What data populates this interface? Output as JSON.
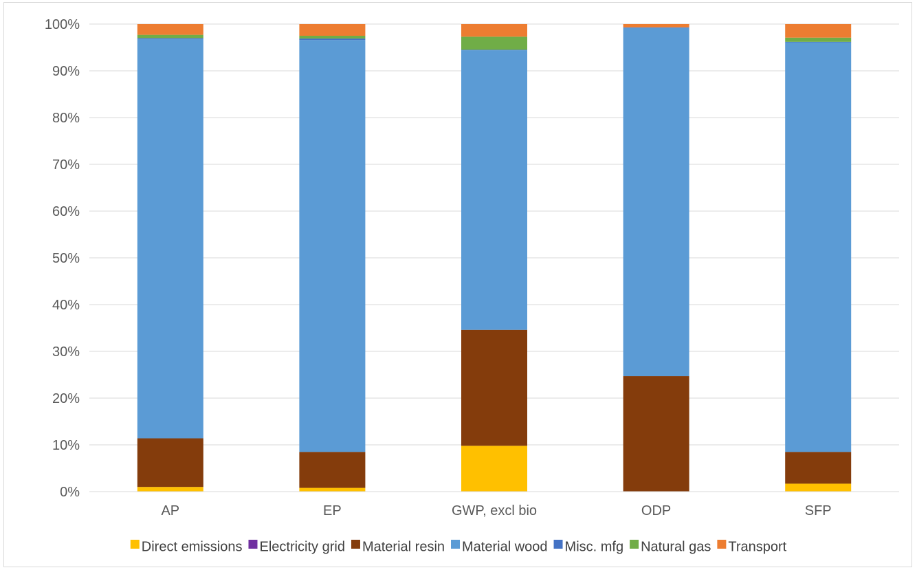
{
  "chart_data": {
    "type": "bar",
    "stacked": true,
    "percent_stacked": true,
    "categories": [
      "AP",
      "EP",
      "GWP, excl bio",
      "ODP",
      "SFP"
    ],
    "series": [
      {
        "name": "Direct emissions",
        "color": "#FFC000",
        "values": [
          1.0,
          0.8,
          9.8,
          0.0,
          1.7
        ]
      },
      {
        "name": "Electricity grid",
        "color": "#7030A0",
        "values": [
          0.0,
          0.0,
          0.0,
          0.0,
          0.0
        ]
      },
      {
        "name": "Material resin",
        "color": "#843C0C",
        "values": [
          10.4,
          7.7,
          24.8,
          24.7,
          6.8
        ]
      },
      {
        "name": "Material wood",
        "color": "#5B9BD5",
        "values": [
          85.4,
          88.1,
          59.8,
          74.5,
          87.6
        ]
      },
      {
        "name": "Misc. mfg",
        "color": "#4472C4",
        "values": [
          0.2,
          0.3,
          0.1,
          0.1,
          0.1
        ]
      },
      {
        "name": "Natural gas",
        "color": "#70AD47",
        "values": [
          0.7,
          0.6,
          2.8,
          0.0,
          0.9
        ]
      },
      {
        "name": "Transport",
        "color": "#ED7D31",
        "values": [
          2.3,
          2.5,
          2.7,
          0.7,
          2.9
        ]
      }
    ],
    "yticks": [
      "0%",
      "10%",
      "20%",
      "30%",
      "40%",
      "50%",
      "60%",
      "70%",
      "80%",
      "90%",
      "100%"
    ],
    "ylim": [
      0,
      100
    ],
    "grid": true,
    "legend_position": "bottom",
    "title": "",
    "xlabel": "",
    "ylabel": ""
  }
}
